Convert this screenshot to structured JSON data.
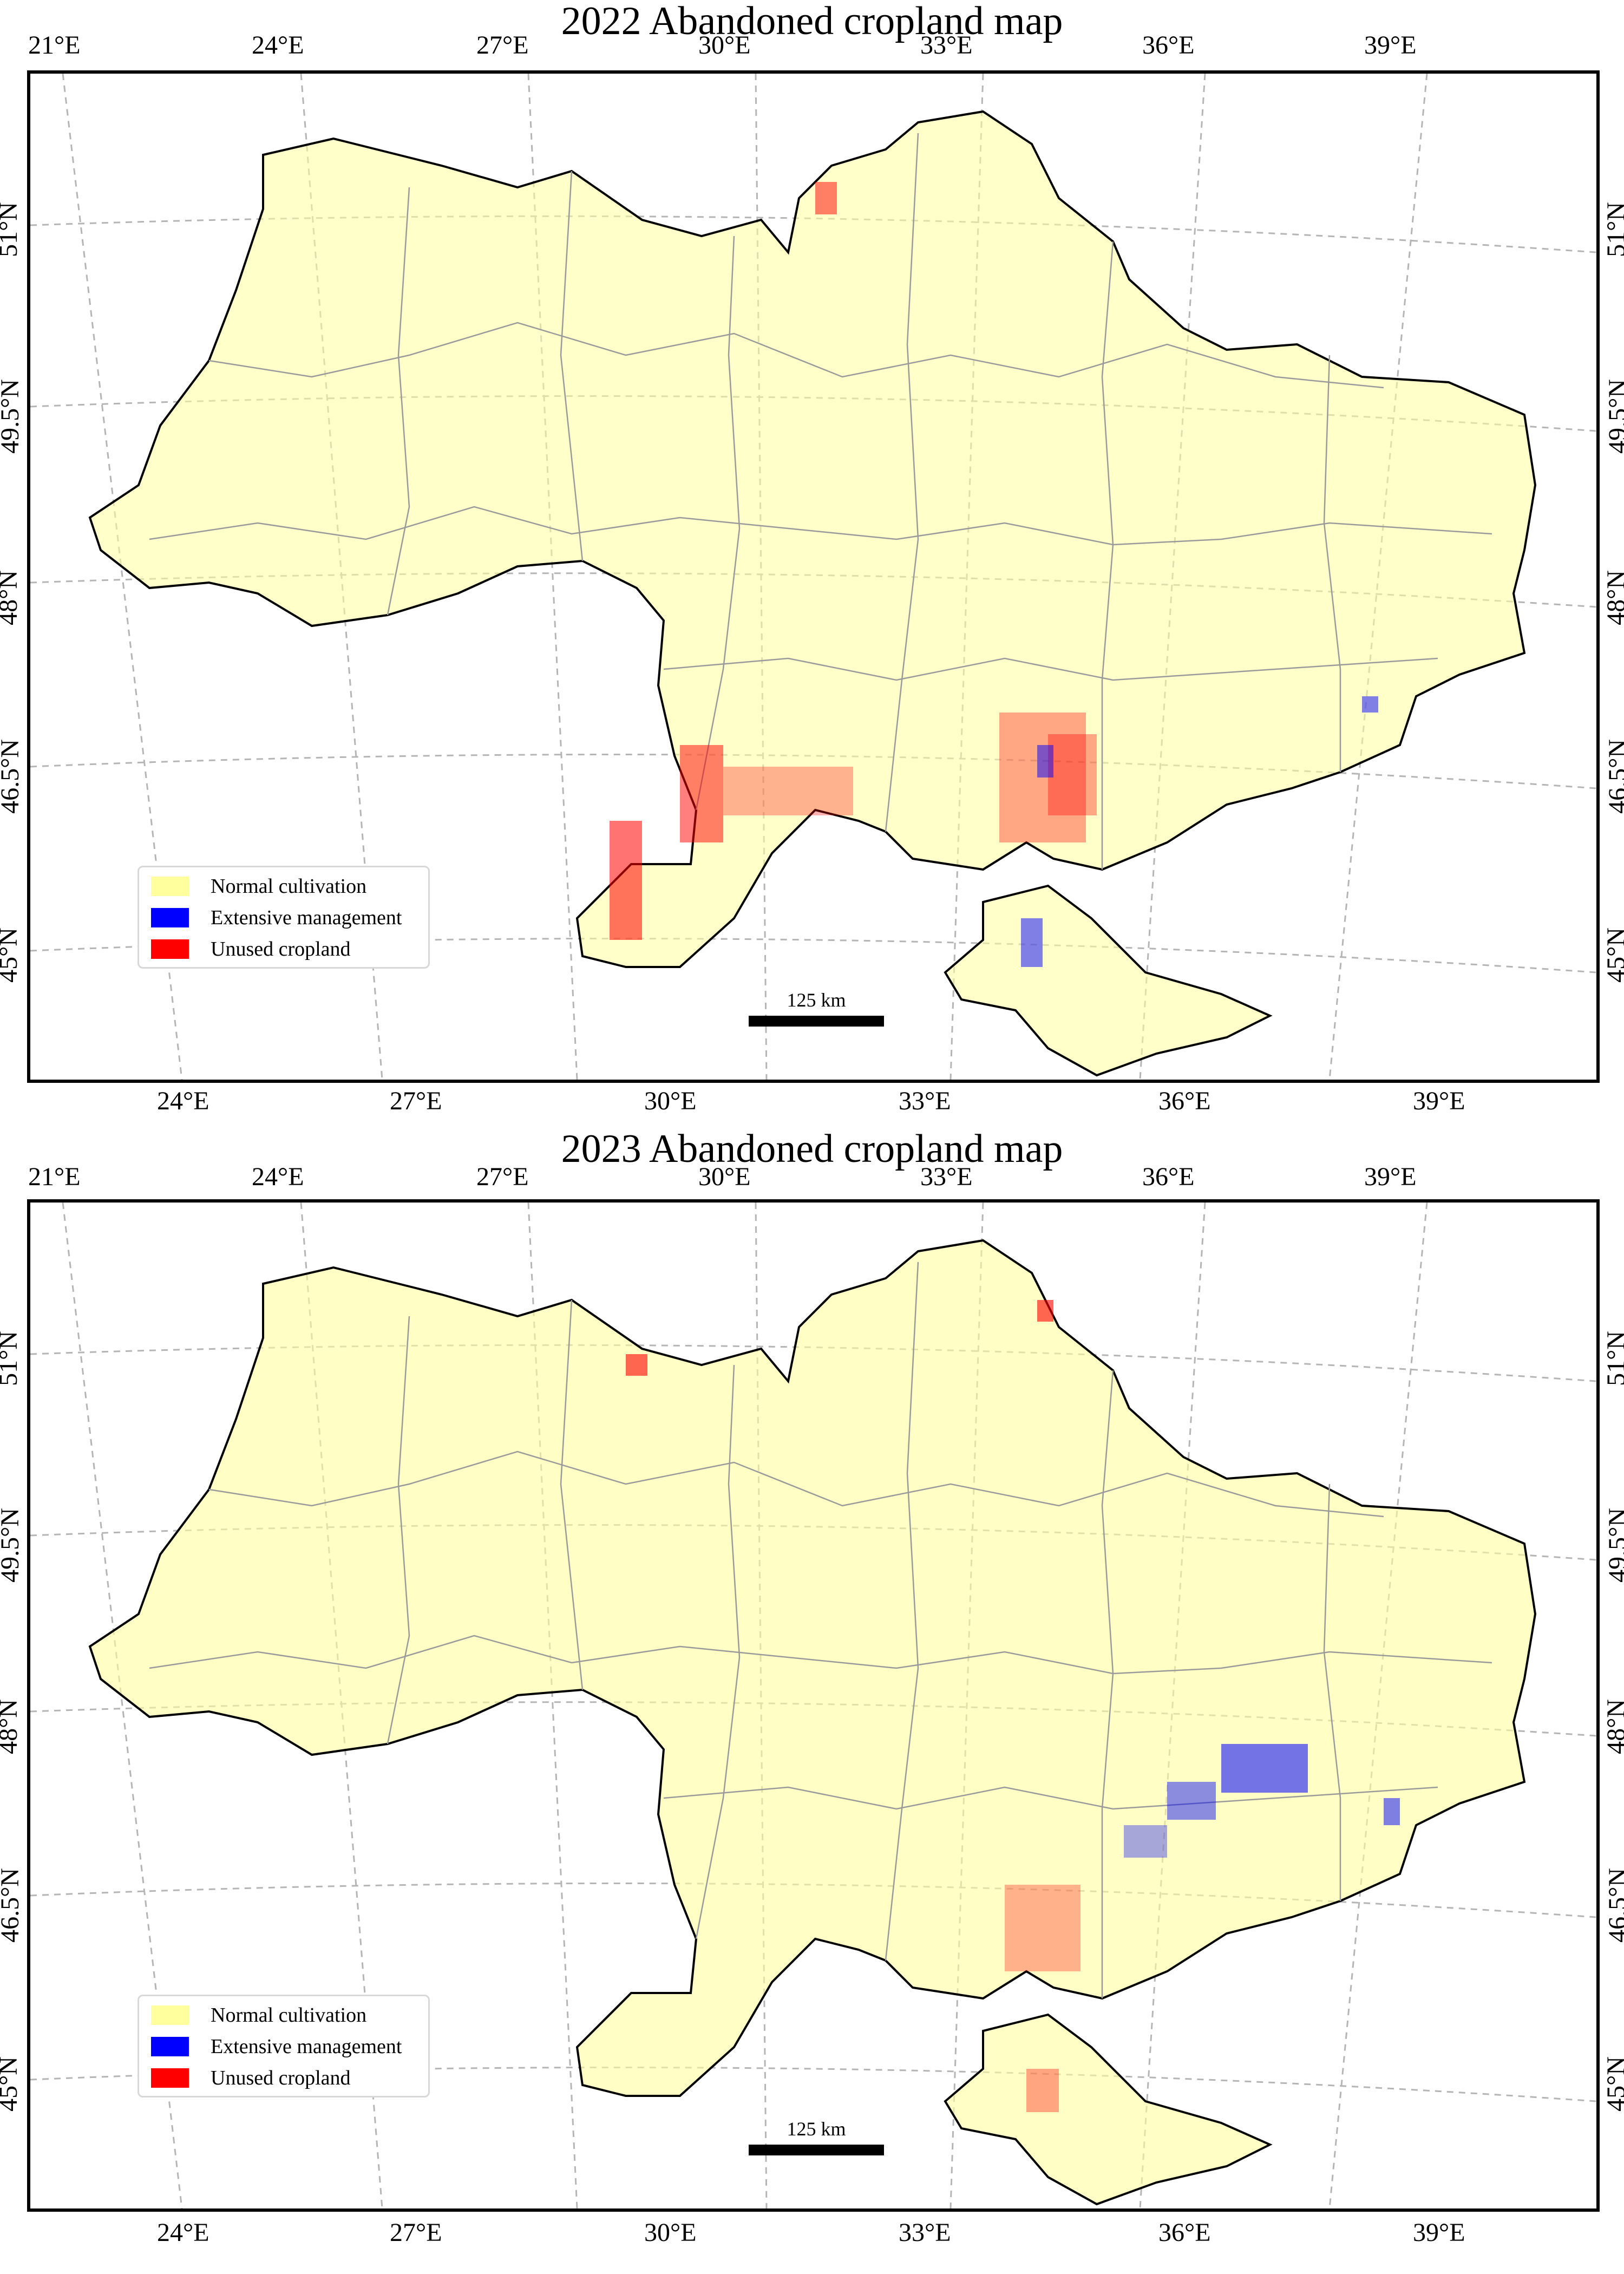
{
  "maps": [
    {
      "title": "2022 Abandoned cropland map",
      "top_ticks": [
        "21°E",
        "24°E",
        "27°E",
        "30°E",
        "33°E",
        "36°E",
        "39°E"
      ],
      "bottom_ticks": [
        "24°E",
        "27°E",
        "30°E",
        "33°E",
        "36°E",
        "39°E"
      ],
      "left_ticks": [
        "51°N",
        "49.5°N",
        "48°N",
        "46.5°N",
        "45°N"
      ],
      "right_ticks": [
        "51°N",
        "49.5°N",
        "48°N",
        "46.5°N",
        "45°N"
      ],
      "legend": [
        {
          "label": "Normal cultivation",
          "color": "#ffff9e"
        },
        {
          "label": "Extensive management",
          "color": "#0000ff"
        },
        {
          "label": "Unused cropland",
          "color": "#ff0000"
        }
      ],
      "scale_label": "125 km"
    },
    {
      "title": "2023 Abandoned cropland map",
      "top_ticks": [
        "21°E",
        "24°E",
        "27°E",
        "30°E",
        "33°E",
        "36°E",
        "39°E"
      ],
      "bottom_ticks": [
        "24°E",
        "27°E",
        "30°E",
        "33°E",
        "36°E",
        "39°E"
      ],
      "left_ticks": [
        "51°N",
        "49.5°N",
        "48°N",
        "46.5°N",
        "45°N"
      ],
      "right_ticks": [
        "51°N",
        "49.5°N",
        "48°N",
        "46.5°N",
        "45°N"
      ],
      "legend": [
        {
          "label": "Normal cultivation",
          "color": "#ffff9e"
        },
        {
          "label": "Extensive management",
          "color": "#0000ff"
        },
        {
          "label": "Unused cropland",
          "color": "#ff0000"
        }
      ],
      "scale_label": "125 km"
    }
  ]
}
